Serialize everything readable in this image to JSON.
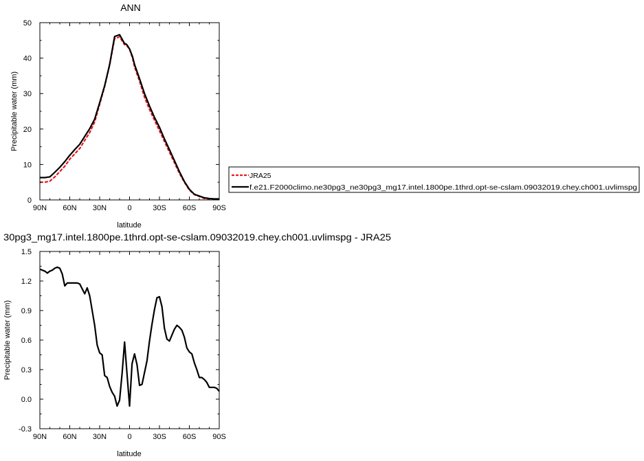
{
  "chart_data": [
    {
      "type": "line",
      "title": "ANN",
      "xlabel": "latitude",
      "ylabel": "Precipitable water (mm)",
      "xlim": [
        90,
        -90
      ],
      "ylim": [
        0,
        50
      ],
      "x_ticks": [
        90,
        60,
        30,
        0,
        -30,
        -60,
        -90
      ],
      "x_tick_labels": [
        "90N",
        "60N",
        "30N",
        "0",
        "30S",
        "60S",
        "90S"
      ],
      "y_ticks": [
        0,
        10,
        20,
        30,
        40,
        50
      ],
      "y_tick_labels": [
        "0",
        "10",
        "20",
        "30",
        "40",
        "50"
      ],
      "legend_placement": "right",
      "series": [
        {
          "name": "JRA25",
          "color": "#e8191e",
          "dash": "dashed",
          "x": [
            90,
            85,
            80,
            75,
            70,
            65,
            60,
            55,
            50,
            45,
            40,
            35,
            30,
            25,
            20,
            15,
            10,
            5,
            3,
            0,
            -3,
            -5,
            -10,
            -15,
            -20,
            -25,
            -30,
            -35,
            -40,
            -45,
            -50,
            -55,
            -60,
            -65,
            -70,
            -75,
            -80,
            -85,
            -90
          ],
          "y": [
            5,
            5,
            5.3,
            6.5,
            8,
            9.5,
            11.5,
            13,
            14.5,
            16.8,
            19,
            22,
            27,
            32,
            38,
            45.5,
            46,
            43.8,
            43.6,
            42.5,
            40,
            37.5,
            33.5,
            29,
            25.5,
            22.5,
            19.5,
            16.5,
            13.5,
            10.5,
            7.5,
            5,
            2.8,
            1.5,
            1,
            0.4,
            0.3,
            0.2,
            0.2
          ]
        },
        {
          "name": "f.e21.F2000climo.ne30pg3_ne30pg3_mg17.intel.1800pe.1thrd.opt-se-cslam.09032019.chey.ch001.uvlimspg",
          "color": "#000000",
          "dash": "solid",
          "x": [
            90,
            85,
            80,
            75,
            70,
            65,
            60,
            55,
            50,
            45,
            40,
            35,
            30,
            25,
            20,
            15,
            10,
            5,
            3,
            0,
            -3,
            -5,
            -10,
            -15,
            -20,
            -25,
            -30,
            -35,
            -40,
            -45,
            -50,
            -55,
            -60,
            -65,
            -70,
            -75,
            -80,
            -85,
            -90
          ],
          "y": [
            6.3,
            6.3,
            6.5,
            7.8,
            9.2,
            10.8,
            12.6,
            14.2,
            15.7,
            17.9,
            20.1,
            22.8,
            27.4,
            32.2,
            38.2,
            46.1,
            46.6,
            44.1,
            43.9,
            42.6,
            40.4,
            38.2,
            34.2,
            30,
            26.5,
            23.3,
            20.5,
            17.2,
            14.2,
            11.1,
            8,
            5.2,
            3,
            1.6,
            1.1,
            0.6,
            0.4,
            0.3,
            0.3
          ]
        }
      ]
    },
    {
      "type": "line",
      "title": "30pg3_mg17.intel.1800pe.1thrd.opt-se-cslam.09032019.chey.ch001.uvlimspg - JRA25",
      "xlabel": "latitude",
      "ylabel": "Precipitable water (mm)",
      "xlim": [
        90,
        -90
      ],
      "ylim": [
        -0.3,
        1.5
      ],
      "x_ticks": [
        90,
        60,
        30,
        0,
        -30,
        -60,
        -90
      ],
      "x_tick_labels": [
        "90N",
        "60N",
        "30N",
        "0",
        "30S",
        "60S",
        "90S"
      ],
      "y_ticks": [
        -0.3,
        0,
        0.3,
        0.6,
        0.9,
        1.2,
        1.5
      ],
      "y_tick_labels": [
        "-0.3",
        "0.0",
        "0.3",
        "0.6",
        "0.9",
        "1.2",
        "1.5"
      ],
      "series": [
        {
          "color": "#000000",
          "dash": "solid",
          "x": [
            90,
            87.5,
            85,
            82.5,
            80,
            77.5,
            75,
            72.5,
            70,
            67.5,
            65,
            62.5,
            60,
            57.5,
            55,
            52.5,
            50,
            47.5,
            45,
            42.5,
            40,
            37.5,
            35,
            32.5,
            30,
            27.5,
            25,
            22.5,
            20,
            17.5,
            15,
            12.5,
            10,
            7.5,
            5,
            2.5,
            0,
            -2.5,
            -5,
            -7.5,
            -10,
            -12.5,
            -15,
            -17.5,
            -20,
            -22.5,
            -25,
            -27.5,
            -30,
            -32.5,
            -35,
            -37.5,
            -40,
            -42.5,
            -45,
            -47.5,
            -50,
            -52.5,
            -55,
            -57.5,
            -60,
            -62.5,
            -65,
            -67.5,
            -70,
            -72.5,
            -75,
            -77.5,
            -80,
            -82.5,
            -85,
            -87.5,
            -90
          ],
          "y": [
            1.32,
            1.31,
            1.3,
            1.28,
            1.3,
            1.31,
            1.33,
            1.34,
            1.33,
            1.27,
            1.15,
            1.18,
            1.18,
            1.18,
            1.18,
            1.18,
            1.17,
            1.12,
            1.07,
            1.13,
            1.05,
            0.9,
            0.75,
            0.55,
            0.47,
            0.45,
            0.24,
            0.22,
            0.13,
            0.07,
            0.03,
            -0.07,
            -0.01,
            0.26,
            0.58,
            0.25,
            -0.07,
            0.36,
            0.46,
            0.35,
            0.14,
            0.15,
            0.27,
            0.39,
            0.59,
            0.76,
            0.91,
            1.03,
            1.04,
            0.94,
            0.72,
            0.61,
            0.59,
            0.65,
            0.71,
            0.75,
            0.73,
            0.7,
            0.63,
            0.52,
            0.48,
            0.46,
            0.37,
            0.3,
            0.22,
            0.22,
            0.2,
            0.17,
            0.12,
            0.12,
            0.12,
            0.11,
            0.08
          ]
        }
      ]
    }
  ]
}
